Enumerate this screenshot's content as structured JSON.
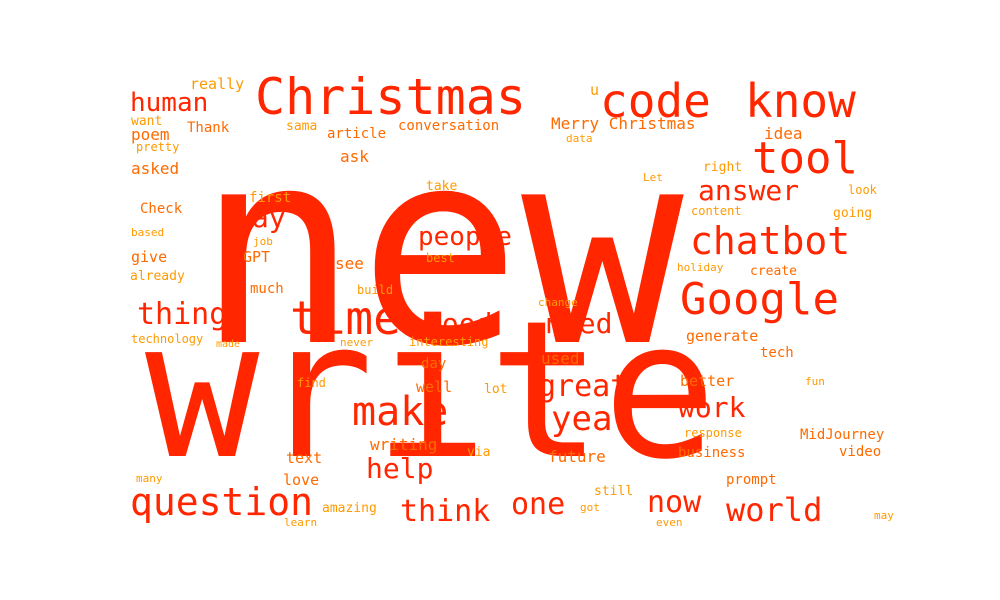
{
  "colors": {
    "background": "#ffffff",
    "primary": "#ff2600",
    "secondary": "#ff6a00",
    "tertiary": "#ff9a00"
  },
  "words": [
    {
      "id": "new",
      "text": "new",
      "tone": "primary"
    },
    {
      "id": "write",
      "text": "write",
      "tone": "primary"
    },
    {
      "id": "christmas",
      "text": "Christmas",
      "tone": "primary"
    },
    {
      "id": "code",
      "text": "code",
      "tone": "primary"
    },
    {
      "id": "know",
      "text": "know",
      "tone": "primary"
    },
    {
      "id": "tool",
      "text": "tool",
      "tone": "primary"
    },
    {
      "id": "chatbot",
      "text": "chatbot",
      "tone": "primary"
    },
    {
      "id": "google",
      "text": "Google",
      "tone": "primary"
    },
    {
      "id": "time",
      "text": "time",
      "tone": "primary"
    },
    {
      "id": "make",
      "text": "make",
      "tone": "primary"
    },
    {
      "id": "question",
      "text": "question",
      "tone": "primary"
    },
    {
      "id": "human",
      "text": "human",
      "tone": "primary"
    },
    {
      "id": "answer",
      "text": "answer",
      "tone": "primary"
    },
    {
      "id": "way",
      "text": "way",
      "tone": "primary"
    },
    {
      "id": "people",
      "text": "people",
      "tone": "primary"
    },
    {
      "id": "thing",
      "text": "thing",
      "tone": "primary"
    },
    {
      "id": "good",
      "text": "good",
      "tone": "primary"
    },
    {
      "id": "need",
      "text": "need",
      "tone": "primary"
    },
    {
      "id": "great",
      "text": "great",
      "tone": "primary"
    },
    {
      "id": "work",
      "text": "work",
      "tone": "primary"
    },
    {
      "id": "year",
      "text": "year",
      "tone": "primary"
    },
    {
      "id": "help",
      "text": "help",
      "tone": "primary"
    },
    {
      "id": "one",
      "text": "one",
      "tone": "primary"
    },
    {
      "id": "now",
      "text": "now",
      "tone": "primary"
    },
    {
      "id": "world",
      "text": "world",
      "tone": "primary"
    },
    {
      "id": "think",
      "text": "think",
      "tone": "primary"
    },
    {
      "id": "merry-christmas",
      "text": "Merry Christmas",
      "tone": "secondary"
    },
    {
      "id": "thank",
      "text": "Thank",
      "tone": "secondary"
    },
    {
      "id": "poem",
      "text": "poem",
      "tone": "secondary"
    },
    {
      "id": "asked",
      "text": "asked",
      "tone": "secondary"
    },
    {
      "id": "ask",
      "text": "ask",
      "tone": "secondary"
    },
    {
      "id": "gpt",
      "text": "GPT",
      "tone": "secondary"
    },
    {
      "id": "see",
      "text": "see",
      "tone": "secondary"
    },
    {
      "id": "give",
      "text": "give",
      "tone": "secondary"
    },
    {
      "id": "check",
      "text": "Check",
      "tone": "secondary"
    },
    {
      "id": "generate",
      "text": "generate",
      "tone": "secondary"
    },
    {
      "id": "tech",
      "text": "tech",
      "tone": "secondary"
    },
    {
      "id": "used",
      "text": "used",
      "tone": "secondary"
    },
    {
      "id": "day",
      "text": "day",
      "tone": "secondary"
    },
    {
      "id": "well",
      "text": "well",
      "tone": "secondary"
    },
    {
      "id": "better",
      "text": "better",
      "tone": "secondary"
    },
    {
      "id": "writing",
      "text": "writing",
      "tone": "secondary"
    },
    {
      "id": "future",
      "text": "future",
      "tone": "secondary"
    },
    {
      "id": "text",
      "text": "text",
      "tone": "secondary"
    },
    {
      "id": "love",
      "text": "love",
      "tone": "secondary"
    },
    {
      "id": "much",
      "text": "much",
      "tone": "secondary"
    },
    {
      "id": "idea",
      "text": "idea",
      "tone": "secondary"
    },
    {
      "id": "create",
      "text": "create",
      "tone": "secondary"
    },
    {
      "id": "midjourney",
      "text": "MidJourney",
      "tone": "secondary"
    },
    {
      "id": "video",
      "text": "video",
      "tone": "secondary"
    },
    {
      "id": "business",
      "text": "business",
      "tone": "secondary"
    },
    {
      "id": "prompt",
      "text": "prompt",
      "tone": "secondary"
    },
    {
      "id": "conversation",
      "text": "conversation",
      "tone": "secondary"
    },
    {
      "id": "article",
      "text": "article",
      "tone": "secondary"
    },
    {
      "id": "really",
      "text": "really",
      "tone": "tertiary"
    },
    {
      "id": "want",
      "text": "want",
      "tone": "tertiary"
    },
    {
      "id": "pretty",
      "text": "pretty",
      "tone": "tertiary"
    },
    {
      "id": "sama",
      "text": "sama",
      "tone": "tertiary"
    },
    {
      "id": "u",
      "text": "u",
      "tone": "tertiary"
    },
    {
      "id": "data",
      "text": "data",
      "tone": "tertiary"
    },
    {
      "id": "right",
      "text": "right",
      "tone": "tertiary"
    },
    {
      "id": "let",
      "text": "Let",
      "tone": "tertiary"
    },
    {
      "id": "look",
      "text": "look",
      "tone": "tertiary"
    },
    {
      "id": "take",
      "text": "take",
      "tone": "tertiary"
    },
    {
      "id": "first",
      "text": "first",
      "tone": "tertiary"
    },
    {
      "id": "content",
      "text": "content",
      "tone": "tertiary"
    },
    {
      "id": "going",
      "text": "going",
      "tone": "tertiary"
    },
    {
      "id": "based",
      "text": "based",
      "tone": "tertiary"
    },
    {
      "id": "job",
      "text": "job",
      "tone": "tertiary"
    },
    {
      "id": "best",
      "text": "best",
      "tone": "tertiary"
    },
    {
      "id": "already",
      "text": "already",
      "tone": "tertiary"
    },
    {
      "id": "holiday",
      "text": "holiday",
      "tone": "tertiary"
    },
    {
      "id": "build",
      "text": "build",
      "tone": "tertiary"
    },
    {
      "id": "change",
      "text": "change",
      "tone": "tertiary"
    },
    {
      "id": "technology",
      "text": "technology",
      "tone": "tertiary"
    },
    {
      "id": "made",
      "text": "made",
      "tone": "tertiary"
    },
    {
      "id": "never",
      "text": "never",
      "tone": "tertiary"
    },
    {
      "id": "interesting",
      "text": "interesting",
      "tone": "tertiary"
    },
    {
      "id": "find",
      "text": "find",
      "tone": "tertiary"
    },
    {
      "id": "lot",
      "text": "lot",
      "tone": "tertiary"
    },
    {
      "id": "fun",
      "text": "fun",
      "tone": "tertiary"
    },
    {
      "id": "response",
      "text": "response",
      "tone": "tertiary"
    },
    {
      "id": "via",
      "text": "via",
      "tone": "tertiary"
    },
    {
      "id": "many",
      "text": "many",
      "tone": "tertiary"
    },
    {
      "id": "amazing",
      "text": "amazing",
      "tone": "tertiary"
    },
    {
      "id": "still",
      "text": "still",
      "tone": "tertiary"
    },
    {
      "id": "learn",
      "text": "learn",
      "tone": "tertiary"
    },
    {
      "id": "got",
      "text": "got",
      "tone": "tertiary"
    },
    {
      "id": "even",
      "text": "even",
      "tone": "tertiary"
    },
    {
      "id": "may",
      "text": "may",
      "tone": "tertiary"
    }
  ]
}
